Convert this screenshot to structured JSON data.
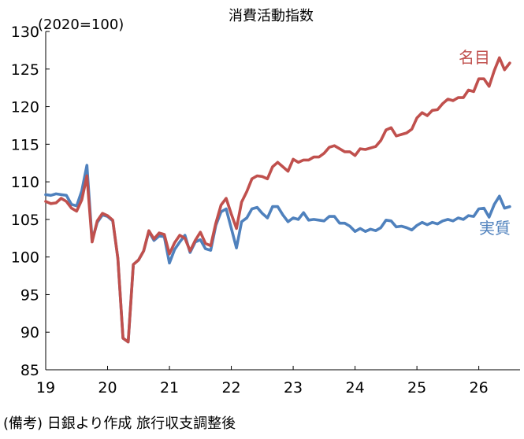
{
  "chart_data": {
    "type": "line",
    "title": "消費活動指数",
    "unit_note": "(2020=100)",
    "source_note": "(備考) 日銀より作成 旅行収支調整後",
    "xlabel": "",
    "ylabel": "",
    "ylim": [
      85,
      130
    ],
    "yticks": [
      85,
      90,
      95,
      100,
      105,
      110,
      115,
      120,
      125,
      130
    ],
    "xlim": [
      2019.0,
      2026.667
    ],
    "xticks": [
      2019,
      2020,
      2021,
      2022,
      2023,
      2024,
      2025,
      2026
    ],
    "xtick_labels": [
      "19",
      "20",
      "21",
      "22",
      "23",
      "24",
      "25",
      "26"
    ],
    "grid": false,
    "legend": "inline labels at right end",
    "x_start": "2019-01",
    "colors": {
      "nominal": "#c0504d",
      "real": "#4f81bd"
    },
    "series": [
      {
        "name": "名目",
        "key": "nominal",
        "values": [
          107.4,
          107.1,
          107.2,
          107.8,
          107.4,
          106.5,
          106.1,
          107.6,
          110.8,
          102.0,
          104.8,
          105.8,
          105.5,
          104.9,
          99.8,
          89.2,
          88.7,
          99.0,
          99.6,
          100.8,
          103.5,
          102.4,
          103.2,
          103.0,
          100.4,
          101.9,
          102.9,
          102.5,
          100.8,
          102.2,
          103.3,
          101.8,
          101.5,
          104.5,
          106.9,
          107.8,
          105.7,
          103.8,
          107.3,
          108.7,
          110.4,
          110.8,
          110.7,
          110.4,
          112.0,
          112.6,
          112.0,
          111.4,
          113.0,
          112.6,
          112.9,
          112.9,
          113.3,
          113.3,
          113.8,
          114.6,
          114.8,
          114.4,
          114.0,
          114.0,
          113.5,
          114.4,
          114.3,
          114.5,
          114.7,
          115.5,
          116.9,
          117.2,
          116.1,
          116.3,
          116.5,
          117.0,
          118.5,
          119.2,
          118.8,
          119.5,
          119.6,
          120.4,
          121.0,
          120.8,
          121.2,
          121.2,
          122.2,
          122.0,
          123.7,
          123.7,
          122.7,
          124.8,
          126.5,
          124.9,
          125.8
        ]
      },
      {
        "name": "実質",
        "key": "real",
        "values": [
          108.3,
          108.2,
          108.4,
          108.3,
          108.2,
          107.0,
          106.8,
          108.8,
          112.2,
          102.2,
          104.6,
          105.6,
          105.4,
          104.8,
          99.8,
          89.2,
          88.7,
          99.0,
          99.6,
          100.8,
          103.4,
          102.2,
          102.8,
          102.7,
          99.2,
          101.0,
          102.0,
          102.9,
          100.6,
          102.0,
          102.3,
          101.1,
          100.9,
          104.2,
          106.0,
          106.4,
          103.8,
          101.2,
          104.7,
          105.2,
          106.4,
          106.6,
          105.8,
          105.2,
          106.7,
          106.7,
          105.6,
          104.7,
          105.2,
          105.0,
          105.9,
          104.9,
          105.0,
          104.9,
          104.8,
          105.4,
          105.4,
          104.5,
          104.5,
          104.1,
          103.4,
          103.8,
          103.4,
          103.7,
          103.5,
          103.9,
          104.9,
          104.8,
          104.0,
          104.1,
          103.9,
          103.6,
          104.2,
          104.6,
          104.3,
          104.6,
          104.4,
          104.8,
          105.0,
          104.8,
          105.2,
          105.0,
          105.5,
          105.4,
          106.4,
          106.5,
          105.3,
          107.0,
          108.1,
          106.5,
          106.7
        ]
      }
    ]
  }
}
